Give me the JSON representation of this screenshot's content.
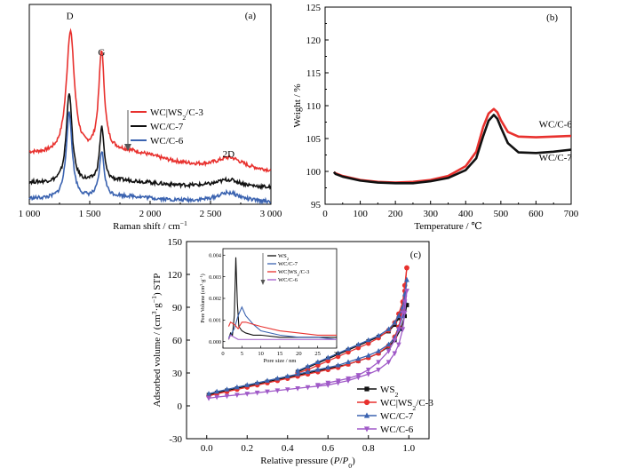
{
  "colors": {
    "red": "#e8312e",
    "black": "#111111",
    "blue": "#3b63b0",
    "purple": "#a05ac8",
    "axis": "#000000"
  },
  "chart_data": [
    {
      "id": "a",
      "type": "line",
      "panel_label": "(a)",
      "xlabel": "Raman shift / cm",
      "xlabel_sup": "−1",
      "ylabel": "",
      "xlim": [
        1000,
        3000
      ],
      "x_ticks": [
        1000,
        1500,
        2000,
        2500,
        3000
      ],
      "x_tick_labels": [
        "1 000",
        "1 500",
        "2 000",
        "2 500",
        "3 000"
      ],
      "y_ticks_shown": false,
      "annotations": [
        {
          "text": "D",
          "x": 1335,
          "y": 1.02
        },
        {
          "text": "G",
          "x": 1598,
          "y": 0.82
        },
        {
          "text": "2D",
          "x": 2650,
          "y": 0.26
        }
      ],
      "legend": {
        "placement": "middle-center",
        "arrow": "down",
        "entries": [
          {
            "name": "WC|WS",
            "sub": "2",
            "tail": "/C-3",
            "color_key": "red"
          },
          {
            "name": "WC/C-7",
            "color_key": "black"
          },
          {
            "name": "WC/C-6",
            "color_key": "blue"
          }
        ]
      },
      "series": [
        {
          "name": "WC|WS2/C-3",
          "color_key": "red",
          "baseline": 0.28,
          "peaks": [
            {
              "c": 1340,
              "h": 0.68,
              "w": 40
            },
            {
              "c": 1598,
              "h": 0.55,
              "w": 28
            },
            {
              "c": 2660,
              "h": 0.06,
              "w": 130
            }
          ],
          "tilt": -0.1,
          "hump": {
            "c": 1800,
            "h": 0.05,
            "w": 350
          }
        },
        {
          "name": "WC/C-7",
          "color_key": "black",
          "baseline": 0.12,
          "peaks": [
            {
              "c": 1330,
              "h": 0.5,
              "w": 28
            },
            {
              "c": 1600,
              "h": 0.3,
              "w": 22
            },
            {
              "c": 2650,
              "h": 0.04,
              "w": 120
            }
          ],
          "tilt": -0.03,
          "hump": {
            "c": 1800,
            "h": 0.02,
            "w": 300
          }
        },
        {
          "name": "WC/C-6",
          "color_key": "blue",
          "baseline": 0.03,
          "peaks": [
            {
              "c": 1330,
              "h": 0.47,
              "w": 30
            },
            {
              "c": 1600,
              "h": 0.25,
              "w": 24
            },
            {
              "c": 2650,
              "h": 0.05,
              "w": 120
            }
          ],
          "tilt": -0.02,
          "hump": {
            "c": 1800,
            "h": 0.02,
            "w": 300
          }
        }
      ]
    },
    {
      "id": "b",
      "type": "line",
      "panel_label": "(b)",
      "xlabel": "Temperature / ℃",
      "ylabel": "Weight / %",
      "xlim": [
        0,
        700
      ],
      "ylim": [
        95,
        125
      ],
      "x_ticks": [
        0,
        100,
        200,
        300,
        400,
        500,
        600,
        700
      ],
      "y_ticks": [
        95,
        100,
        105,
        110,
        115,
        120,
        125
      ],
      "series": [
        {
          "name": "WC/C-6",
          "color_key": "red",
          "x": [
            25,
            30,
            50,
            100,
            150,
            200,
            250,
            300,
            350,
            400,
            430,
            450,
            465,
            480,
            490,
            500,
            520,
            550,
            600,
            650,
            700
          ],
          "y": [
            99.9,
            99.7,
            99.3,
            98.7,
            98.4,
            98.3,
            98.4,
            98.7,
            99.3,
            100.8,
            103.0,
            106.8,
            108.8,
            109.5,
            109.0,
            107.8,
            106.0,
            105.3,
            105.2,
            105.3,
            105.4
          ]
        },
        {
          "name": "WC/C-7",
          "color_key": "black",
          "x": [
            25,
            30,
            50,
            100,
            150,
            200,
            250,
            300,
            350,
            400,
            430,
            450,
            465,
            480,
            490,
            500,
            520,
            550,
            600,
            650,
            700
          ],
          "y": [
            99.9,
            99.6,
            99.2,
            98.6,
            98.3,
            98.2,
            98.2,
            98.5,
            99.0,
            100.2,
            102.0,
            105.4,
            107.7,
            108.6,
            108.0,
            106.7,
            104.3,
            102.9,
            102.8,
            103.0,
            103.3
          ]
        }
      ],
      "labels": [
        {
          "text": "WC/C-6",
          "x": 608,
          "y": 106.7
        },
        {
          "text": "WC/C-7",
          "x": 608,
          "y": 101.6
        }
      ]
    },
    {
      "id": "c",
      "type": "line",
      "panel_label": "(c)",
      "xlabel": "Relative pressure (",
      "xlabel_italic": "P",
      "xlabel_mid": "/",
      "xlabel_italic2": "P",
      "xlabel_sub": "0",
      "xlabel_tail": ")",
      "ylabel": "Adsorbed volume / (cm",
      "ylabel_sup1": "3",
      "ylabel_mid": "·g",
      "ylabel_sup2": "−1",
      "ylabel_tail": ") STP",
      "xlim": [
        -0.1,
        1.1
      ],
      "ylim": [
        -30,
        150
      ],
      "x_ticks": [
        0.0,
        0.2,
        0.4,
        0.6,
        0.8,
        1.0
      ],
      "x_tick_labels": [
        "0.0",
        "0.2",
        "0.4",
        "0.6",
        "0.8",
        "1.0"
      ],
      "y_ticks": [
        -30,
        0,
        30,
        60,
        90,
        120,
        150
      ],
      "legend": {
        "placement": "bottom-right",
        "entries": [
          {
            "name": "WS",
            "sub": "2",
            "tail": "",
            "color_key": "black",
            "marker": "square"
          },
          {
            "name": "WC|WS",
            "sub": "2",
            "tail": "/C-3",
            "color_key": "red",
            "marker": "circle"
          },
          {
            "name": "WC/C-7",
            "color_key": "blue",
            "marker": "triangle"
          },
          {
            "name": "WC/C-6",
            "color_key": "purple",
            "marker": "triangle-down"
          }
        ]
      },
      "series": [
        {
          "name": "WS2",
          "color_key": "black",
          "marker": "square",
          "ads_x": [
            0.01,
            0.05,
            0.1,
            0.15,
            0.2,
            0.25,
            0.3,
            0.35,
            0.4,
            0.45,
            0.5,
            0.55,
            0.6,
            0.65,
            0.7,
            0.75,
            0.8,
            0.85,
            0.9,
            0.93,
            0.96,
            0.98,
            0.99
          ],
          "ads_y": [
            10,
            12,
            14,
            16,
            18,
            20,
            22,
            24,
            26,
            28,
            30,
            32,
            34,
            36,
            38,
            41,
            44,
            48,
            54,
            60,
            70,
            82,
            92
          ],
          "des_x": [
            0.99,
            0.97,
            0.95,
            0.93,
            0.9,
            0.85,
            0.8,
            0.75,
            0.7,
            0.65,
            0.6,
            0.55,
            0.5,
            0.45
          ],
          "des_y": [
            92,
            86,
            80,
            74,
            68,
            63,
            59,
            55,
            51,
            47,
            43,
            39,
            35,
            31
          ]
        },
        {
          "name": "WC|WS2/C-3",
          "color_key": "red",
          "marker": "circle",
          "ads_x": [
            0.01,
            0.05,
            0.1,
            0.15,
            0.2,
            0.25,
            0.3,
            0.35,
            0.4,
            0.45,
            0.5,
            0.55,
            0.6,
            0.65,
            0.7,
            0.75,
            0.8,
            0.85,
            0.9,
            0.93,
            0.95,
            0.97,
            0.98,
            0.99
          ],
          "ads_y": [
            9,
            11,
            13,
            15,
            17,
            19,
            21,
            23,
            25,
            27,
            29,
            31,
            33,
            35,
            38,
            41,
            44,
            48,
            55,
            63,
            72,
            88,
            105,
            126
          ],
          "des_x": [
            0.99,
            0.98,
            0.97,
            0.95,
            0.93,
            0.9,
            0.85,
            0.8,
            0.75,
            0.7,
            0.65,
            0.6,
            0.55,
            0.5,
            0.45
          ],
          "des_y": [
            126,
            110,
            95,
            84,
            76,
            69,
            62,
            57,
            53,
            49,
            45,
            41,
            37,
            33,
            30
          ]
        },
        {
          "name": "WC/C-7",
          "color_key": "blue",
          "marker": "triangle",
          "ads_x": [
            0.01,
            0.05,
            0.1,
            0.15,
            0.2,
            0.25,
            0.3,
            0.35,
            0.4,
            0.45,
            0.5,
            0.55,
            0.6,
            0.65,
            0.7,
            0.75,
            0.8,
            0.85,
            0.9,
            0.93,
            0.95,
            0.97,
            0.98,
            0.99
          ],
          "ads_y": [
            11,
            13,
            15,
            17,
            19,
            21,
            23,
            25,
            27,
            29,
            31,
            33,
            35,
            37,
            40,
            43,
            46,
            50,
            56,
            62,
            70,
            82,
            96,
            115
          ],
          "des_x": [
            0.99,
            0.98,
            0.97,
            0.95,
            0.93,
            0.9,
            0.85,
            0.8,
            0.75,
            0.7,
            0.65,
            0.6,
            0.55,
            0.5,
            0.45
          ],
          "des_y": [
            115,
            102,
            90,
            82,
            76,
            70,
            64,
            60,
            56,
            52,
            48,
            44,
            40,
            36,
            32
          ]
        },
        {
          "name": "WC/C-6",
          "color_key": "purple",
          "marker": "triangle-down",
          "ads_x": [
            0.01,
            0.05,
            0.1,
            0.15,
            0.2,
            0.25,
            0.3,
            0.35,
            0.4,
            0.45,
            0.5,
            0.55,
            0.6,
            0.65,
            0.7,
            0.75,
            0.8,
            0.85,
            0.9,
            0.93,
            0.95,
            0.97,
            0.98,
            0.99
          ],
          "ads_y": [
            7,
            8,
            9,
            10,
            11,
            12,
            13,
            14,
            15,
            16,
            17,
            18,
            19,
            21,
            23,
            26,
            29,
            33,
            40,
            48,
            56,
            70,
            85,
            105
          ],
          "des_x": [
            0.99,
            0.98,
            0.97,
            0.95,
            0.93,
            0.9,
            0.85,
            0.8,
            0.75,
            0.7,
            0.65,
            0.6,
            0.55
          ],
          "des_y": [
            105,
            95,
            85,
            70,
            60,
            50,
            40,
            33,
            28,
            25,
            23,
            21,
            19
          ]
        }
      ]
    },
    {
      "id": "c-inset",
      "type": "line",
      "xlabel": "Pore size / nm",
      "ylabel": "Pore Volume (cm",
      "ylabel_sup1": "3",
      "ylabel_mid": "·g",
      "ylabel_sup2": "−1",
      "ylabel_tail": ")",
      "xlim": [
        0,
        30
      ],
      "ylim": [
        -0.0003,
        0.0043
      ],
      "x_ticks": [
        0,
        5,
        10,
        15,
        20,
        25,
        30
      ],
      "y_ticks": [
        0.0,
        0.001,
        0.002,
        0.003,
        0.004
      ],
      "y_tick_labels": [
        "0.000",
        "0.001",
        "0.002",
        "0.003",
        "0.004"
      ],
      "legend": {
        "placement": "top-center",
        "arrow": "down",
        "entries": [
          {
            "name": "WS",
            "sub": "2",
            "tail": "",
            "color_key": "black"
          },
          {
            "name": "WC/C-7",
            "color_key": "blue"
          },
          {
            "name": "WC|WS",
            "sub": "2",
            "tail": "/C-3",
            "color_key": "red"
          },
          {
            "name": "WC/C-6",
            "color_key": "purple"
          }
        ]
      },
      "series": [
        {
          "name": "WS2",
          "color_key": "black",
          "x": [
            1.5,
            2,
            2.5,
            3,
            3.4,
            3.8,
            4.2,
            5,
            6,
            8,
            10,
            15,
            20,
            25,
            30
          ],
          "y": [
            0.0001,
            0.0004,
            0.0003,
            0.0012,
            0.0039,
            0.0018,
            0.0007,
            0.0005,
            0.0004,
            0.0003,
            0.0003,
            0.0002,
            0.0002,
            0.0002,
            0.0002
          ]
        },
        {
          "name": "WC/C-7",
          "color_key": "blue",
          "x": [
            1.5,
            2,
            3,
            4,
            5,
            6,
            8,
            10,
            15,
            20,
            25,
            30
          ],
          "y": [
            0.0002,
            0.0003,
            0.0006,
            0.0012,
            0.0016,
            0.0012,
            0.0008,
            0.0005,
            0.0003,
            0.0002,
            0.0002,
            0.0001
          ]
        },
        {
          "name": "WC|WS2/C-3",
          "color_key": "red",
          "x": [
            1.5,
            2,
            3,
            4,
            5,
            6,
            8,
            10,
            15,
            20,
            25,
            30
          ],
          "y": [
            0.0007,
            0.0009,
            0.0008,
            0.0006,
            0.0009,
            0.0009,
            0.0008,
            0.0007,
            0.0005,
            0.0004,
            0.0003,
            0.0003
          ]
        },
        {
          "name": "WC/C-6",
          "color_key": "purple",
          "x": [
            1.5,
            2,
            3,
            4,
            5,
            6,
            8,
            10,
            15,
            20,
            25,
            30
          ],
          "y": [
            0.0001,
            0.0003,
            0.0002,
            0.0001,
            0.0001,
            0.0001,
            0.0001,
            0.0001,
            0.0001,
            0.0001,
            0.0001,
            0.0001
          ]
        }
      ]
    }
  ]
}
